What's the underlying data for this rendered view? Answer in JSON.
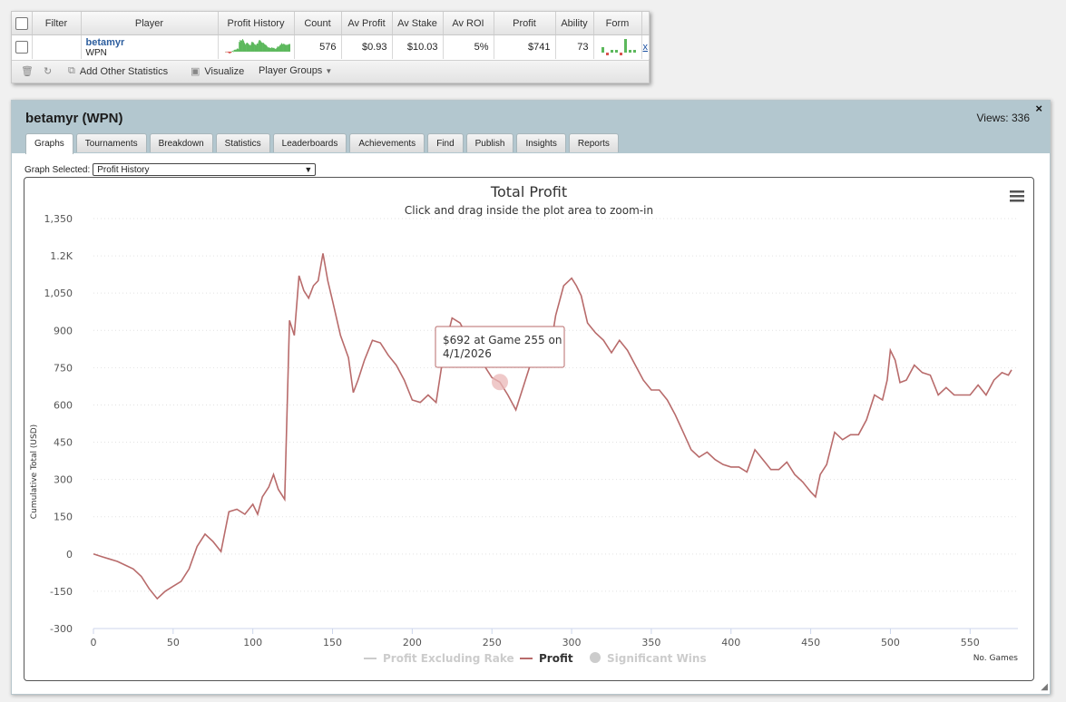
{
  "stats_table": {
    "headers": [
      "Filter",
      "Player",
      "Profit History",
      "Count",
      "Av Profit",
      "Av Stake",
      "Av ROI",
      "Profit",
      "Ability",
      "Form"
    ],
    "row": {
      "player_name": "betamyr",
      "site": "WPN",
      "count": "576",
      "av_profit": "$0.93",
      "av_stake": "$10.03",
      "av_roi": "5%",
      "profit": "$741",
      "ability": "73",
      "remove": "x",
      "sparkline_color": "#5cb85c",
      "form_values": [
        2,
        -1,
        1,
        1,
        -1,
        5,
        1,
        1
      ]
    },
    "toolbar": {
      "add_other_statistics": "Add Other Statistics",
      "visualize": "Visualize",
      "player_groups": "Player Groups"
    }
  },
  "panel": {
    "title": "betamyr (WPN)",
    "views": "Views: 336",
    "close": "×",
    "tabs": [
      "Graphs",
      "Tournaments",
      "Breakdown",
      "Statistics",
      "Leaderboards",
      "Achievements",
      "Find",
      "Publish",
      "Insights",
      "Reports"
    ],
    "active_tab": "Graphs",
    "graph_selected_label": "Graph Selected:",
    "graph_selected_value": "Profit History"
  },
  "chart_data": {
    "type": "line",
    "title": "Total Profit",
    "subtitle": "Click and drag inside the plot area to zoom-in",
    "ylabel": "Cumulative Total (USD)",
    "xlabel": "No. Games",
    "xlim": [
      0,
      580
    ],
    "ylim": [
      -300,
      1350
    ],
    "x_ticks": [
      0,
      50,
      100,
      150,
      200,
      250,
      300,
      350,
      400,
      450,
      500,
      550
    ],
    "y_ticks": [
      -300,
      -150,
      0,
      150,
      300,
      450,
      600,
      750,
      900,
      1050,
      1200,
      1350
    ],
    "y_tick_labels": [
      "-300",
      "-150",
      "0",
      "150",
      "300",
      "450",
      "600",
      "750",
      "900",
      "1,050",
      "1.2K",
      "1,350"
    ],
    "grid": "horizontal-dotted",
    "series": [
      {
        "name": "Profit",
        "color": "#b86b6b",
        "points": [
          [
            0,
            0
          ],
          [
            5,
            -10
          ],
          [
            10,
            -20
          ],
          [
            15,
            -30
          ],
          [
            20,
            -45
          ],
          [
            25,
            -60
          ],
          [
            30,
            -90
          ],
          [
            35,
            -140
          ],
          [
            40,
            -180
          ],
          [
            45,
            -150
          ],
          [
            50,
            -130
          ],
          [
            55,
            -110
          ],
          [
            60,
            -60
          ],
          [
            65,
            30
          ],
          [
            70,
            80
          ],
          [
            75,
            50
          ],
          [
            80,
            10
          ],
          [
            85,
            170
          ],
          [
            90,
            180
          ],
          [
            95,
            160
          ],
          [
            100,
            200
          ],
          [
            103,
            160
          ],
          [
            106,
            230
          ],
          [
            110,
            270
          ],
          [
            113,
            320
          ],
          [
            116,
            260
          ],
          [
            120,
            220
          ],
          [
            123,
            940
          ],
          [
            126,
            880
          ],
          [
            129,
            1120
          ],
          [
            132,
            1060
          ],
          [
            135,
            1030
          ],
          [
            138,
            1080
          ],
          [
            141,
            1100
          ],
          [
            144,
            1210
          ],
          [
            147,
            1100
          ],
          [
            150,
            1020
          ],
          [
            155,
            880
          ],
          [
            160,
            790
          ],
          [
            163,
            650
          ],
          [
            166,
            700
          ],
          [
            170,
            780
          ],
          [
            175,
            860
          ],
          [
            180,
            850
          ],
          [
            185,
            800
          ],
          [
            190,
            760
          ],
          [
            195,
            700
          ],
          [
            200,
            620
          ],
          [
            205,
            610
          ],
          [
            210,
            640
          ],
          [
            215,
            610
          ],
          [
            220,
            820
          ],
          [
            225,
            950
          ],
          [
            230,
            930
          ],
          [
            235,
            870
          ],
          [
            240,
            880
          ],
          [
            245,
            760
          ],
          [
            250,
            710
          ],
          [
            255,
            692
          ],
          [
            260,
            640
          ],
          [
            265,
            580
          ],
          [
            270,
            680
          ],
          [
            275,
            780
          ],
          [
            280,
            760
          ],
          [
            285,
            760
          ],
          [
            290,
            960
          ],
          [
            295,
            1080
          ],
          [
            300,
            1110
          ],
          [
            303,
            1080
          ],
          [
            306,
            1040
          ],
          [
            310,
            930
          ],
          [
            315,
            890
          ],
          [
            320,
            860
          ],
          [
            325,
            810
          ],
          [
            330,
            860
          ],
          [
            335,
            820
          ],
          [
            340,
            760
          ],
          [
            345,
            700
          ],
          [
            350,
            660
          ],
          [
            355,
            660
          ],
          [
            360,
            620
          ],
          [
            365,
            560
          ],
          [
            370,
            490
          ],
          [
            375,
            420
          ],
          [
            380,
            390
          ],
          [
            385,
            410
          ],
          [
            390,
            380
          ],
          [
            395,
            360
          ],
          [
            400,
            350
          ],
          [
            405,
            350
          ],
          [
            410,
            330
          ],
          [
            415,
            420
          ],
          [
            420,
            380
          ],
          [
            425,
            340
          ],
          [
            430,
            340
          ],
          [
            435,
            370
          ],
          [
            440,
            320
          ],
          [
            445,
            290
          ],
          [
            450,
            250
          ],
          [
            453,
            230
          ],
          [
            456,
            320
          ],
          [
            460,
            360
          ],
          [
            465,
            490
          ],
          [
            470,
            460
          ],
          [
            475,
            480
          ],
          [
            480,
            480
          ],
          [
            485,
            540
          ],
          [
            490,
            640
          ],
          [
            495,
            620
          ],
          [
            498,
            700
          ],
          [
            500,
            820
          ],
          [
            503,
            780
          ],
          [
            506,
            690
          ],
          [
            510,
            700
          ],
          [
            515,
            760
          ],
          [
            520,
            730
          ],
          [
            525,
            720
          ],
          [
            530,
            640
          ],
          [
            535,
            670
          ],
          [
            540,
            640
          ],
          [
            545,
            640
          ],
          [
            550,
            640
          ],
          [
            555,
            680
          ],
          [
            560,
            640
          ],
          [
            565,
            700
          ],
          [
            570,
            730
          ],
          [
            574,
            720
          ],
          [
            576,
            741
          ]
        ]
      }
    ],
    "legend": [
      {
        "name": "Profit Excluding Rake",
        "color": "#cccccc",
        "hidden": true
      },
      {
        "name": "Profit",
        "color": "#b86b6b",
        "hidden": false
      },
      {
        "name": "Significant Wins",
        "color": "#cccccc",
        "hidden": true
      }
    ],
    "legend_position": "bottom-center",
    "tooltip": {
      "line1": "$692 at Game 255 on",
      "line2": "4/1/2026",
      "game": 255,
      "value": 692
    }
  }
}
